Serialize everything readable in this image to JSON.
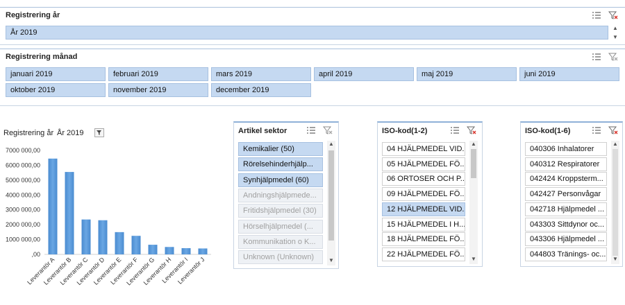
{
  "slicer_year": {
    "title": "Registrering år",
    "selected": "År 2019"
  },
  "slicer_month": {
    "title": "Registrering månad",
    "items": [
      "januari 2019",
      "februari 2019",
      "mars 2019",
      "april 2019",
      "maj 2019",
      "juni 2019",
      "oktober 2019",
      "november 2019",
      "december 2019"
    ]
  },
  "chart_filter": {
    "label": "Registrering år",
    "value": "År 2019"
  },
  "chart_data": {
    "type": "bar",
    "categories": [
      "Leverantör A",
      "Leverantör B",
      "Leverantör C",
      "Leverantör D",
      "Leverantör E",
      "Leverantör F",
      "Leverantör G",
      "Leverantör H",
      "Leverantör I",
      "Leverantör J"
    ],
    "values": [
      6450000,
      5550000,
      2350000,
      2300000,
      1500000,
      1250000,
      650000,
      500000,
      420000,
      400000
    ],
    "ylim": [
      0,
      7000000
    ],
    "yticks": [
      "7000 000,00",
      "6000 000,00",
      "5000 000,00",
      "4000 000,00",
      "3000 000,00",
      "2000 000,00",
      "1000 000,00",
      ",00"
    ],
    "color": "#5b9bd5"
  },
  "slicer_article": {
    "title": "Artikel sektor",
    "items": [
      {
        "label": "Kemikalier (50)",
        "state": "selected"
      },
      {
        "label": "Rörelsehinderhjälp...",
        "state": "selected"
      },
      {
        "label": "Synhjälpmedel (60)",
        "state": "selected"
      },
      {
        "label": "Andningshjälpmede...",
        "state": "disabled"
      },
      {
        "label": "Fritidshjälpmedel (30)",
        "state": "disabled"
      },
      {
        "label": "Hörselhjälpmedel (...",
        "state": "disabled"
      },
      {
        "label": "Kommunikation o K...",
        "state": "disabled"
      },
      {
        "label": "Unknown (Unknown)",
        "state": "disabled"
      }
    ]
  },
  "slicer_iso2": {
    "title": "ISO-kod(1-2)",
    "items": [
      {
        "label": "04 HJÄLPMEDEL VID...",
        "state": "normal"
      },
      {
        "label": "05 HJÄLPMEDEL FÖ...",
        "state": "normal"
      },
      {
        "label": "06 ORTOSER OCH P...",
        "state": "normal"
      },
      {
        "label": "09 HJÄLPMEDEL FÖ...",
        "state": "normal"
      },
      {
        "label": "12 HJÄLPMEDEL VID...",
        "state": "selected"
      },
      {
        "label": "15 HJÄLPMEDEL I H...",
        "state": "normal"
      },
      {
        "label": "18 HJÄLPMEDEL FÖ...",
        "state": "normal"
      },
      {
        "label": "22 HJÄLPMEDEL FÖ...",
        "state": "normal"
      }
    ]
  },
  "slicer_iso6": {
    "title": "ISO-kod(1-6)",
    "items": [
      {
        "label": "040306 Inhalatorer",
        "state": "normal"
      },
      {
        "label": "040312 Respiratorer",
        "state": "normal"
      },
      {
        "label": "042424 Kroppsterm...",
        "state": "normal"
      },
      {
        "label": "042427 Personvågar",
        "state": "normal"
      },
      {
        "label": "042718 Hjälpmedel ...",
        "state": "normal"
      },
      {
        "label": "043303 Sittdynor oc...",
        "state": "normal"
      },
      {
        "label": "043306 Hjälpmedel ...",
        "state": "normal"
      },
      {
        "label": "044803 Tränings- oc...",
        "state": "normal"
      }
    ]
  },
  "icons": {
    "multiselect": "multiselect-icon",
    "clear_filter": "clear-filter-icon",
    "filter_button": "filter-button-icon"
  },
  "colors": {
    "tile_selected": "#c5d9f1",
    "bar": "#5b9bd5",
    "clear_filter_x": "#d9342b"
  }
}
